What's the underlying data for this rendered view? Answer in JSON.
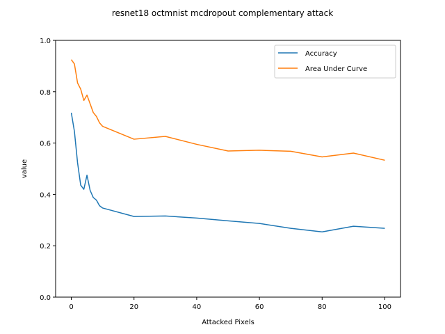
{
  "chart_data": {
    "type": "line",
    "title": "resnet18 octmnist mcdropout complementary attack",
    "xlabel": "Attacked Pixels",
    "ylabel": "value",
    "xlim": [
      -5,
      105
    ],
    "ylim": [
      0.0,
      1.0
    ],
    "xticks": [
      0,
      20,
      40,
      60,
      80,
      100
    ],
    "yticks": [
      0.0,
      0.2,
      0.4,
      0.6,
      0.8,
      1.0
    ],
    "ytick_labels": [
      "0.0",
      "0.2",
      "0.4",
      "0.6",
      "0.8",
      "1.0"
    ],
    "legend_position": "top-right",
    "grid": false,
    "series": [
      {
        "name": "Accuracy",
        "color": "#1f77b4",
        "x": [
          0,
          1,
          2,
          3,
          4,
          5,
          6,
          7,
          8,
          9,
          10,
          20,
          30,
          40,
          50,
          60,
          70,
          80,
          90,
          100
        ],
        "y": [
          0.718,
          0.645,
          0.523,
          0.436,
          0.42,
          0.475,
          0.416,
          0.388,
          0.378,
          0.356,
          0.347,
          0.314,
          0.316,
          0.308,
          0.297,
          0.287,
          0.268,
          0.254,
          0.276,
          0.268
        ]
      },
      {
        "name": "Area Under Curve",
        "color": "#ff7f0e",
        "x": [
          0,
          1,
          2,
          3,
          4,
          5,
          6,
          7,
          8,
          9,
          10,
          20,
          30,
          40,
          50,
          60,
          70,
          80,
          90,
          100
        ],
        "y": [
          0.925,
          0.908,
          0.834,
          0.81,
          0.766,
          0.787,
          0.753,
          0.719,
          0.704,
          0.679,
          0.665,
          0.615,
          0.626,
          0.595,
          0.569,
          0.572,
          0.568,
          0.546,
          0.561,
          0.533
        ]
      }
    ]
  }
}
